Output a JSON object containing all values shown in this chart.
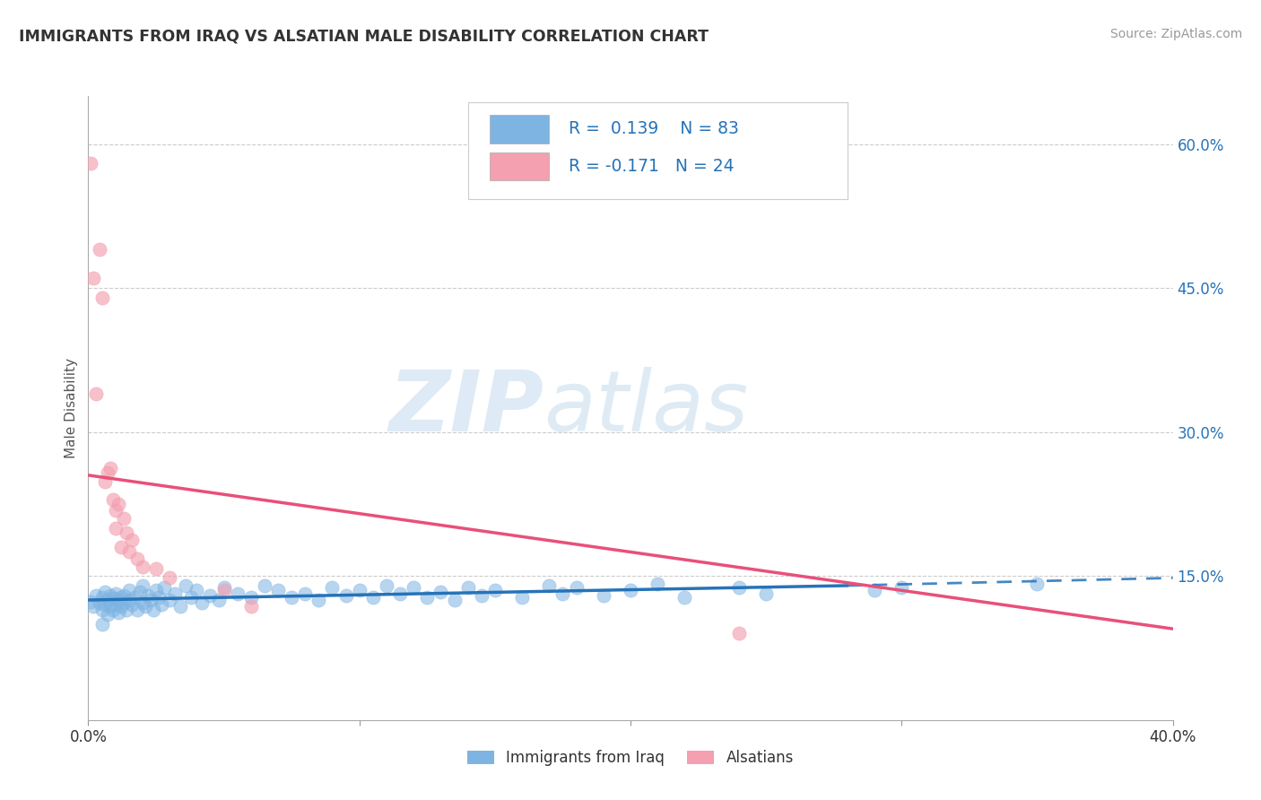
{
  "title": "IMMIGRANTS FROM IRAQ VS ALSATIAN MALE DISABILITY CORRELATION CHART",
  "source": "Source: ZipAtlas.com",
  "ylabel": "Male Disability",
  "xlim": [
    0.0,
    0.4
  ],
  "ylim": [
    0.0,
    0.65
  ],
  "legend_blue_label": "Immigrants from Iraq",
  "legend_pink_label": "Alsatians",
  "R_blue": 0.139,
  "N_blue": 83,
  "R_pink": -0.171,
  "N_pink": 24,
  "blue_color": "#7EB4E2",
  "pink_color": "#F4A0B0",
  "blue_line_color": "#2673B8",
  "pink_line_color": "#E8507A",
  "watermark_zip": "ZIP",
  "watermark_atlas": "atlas",
  "background_color": "#FFFFFF",
  "grid_color": "#CCCCCC",
  "blue_scatter": [
    [
      0.001,
      0.123
    ],
    [
      0.002,
      0.118
    ],
    [
      0.003,
      0.13
    ],
    [
      0.004,
      0.122
    ],
    [
      0.005,
      0.128
    ],
    [
      0.005,
      0.115
    ],
    [
      0.006,
      0.133
    ],
    [
      0.006,
      0.12
    ],
    [
      0.007,
      0.125
    ],
    [
      0.007,
      0.11
    ],
    [
      0.008,
      0.118
    ],
    [
      0.008,
      0.13
    ],
    [
      0.009,
      0.127
    ],
    [
      0.009,
      0.115
    ],
    [
      0.01,
      0.132
    ],
    [
      0.01,
      0.12
    ],
    [
      0.011,
      0.125
    ],
    [
      0.011,
      0.112
    ],
    [
      0.012,
      0.128
    ],
    [
      0.012,
      0.118
    ],
    [
      0.013,
      0.122
    ],
    [
      0.013,
      0.13
    ],
    [
      0.014,
      0.115
    ],
    [
      0.015,
      0.125
    ],
    [
      0.015,
      0.135
    ],
    [
      0.016,
      0.12
    ],
    [
      0.017,
      0.128
    ],
    [
      0.018,
      0.115
    ],
    [
      0.019,
      0.133
    ],
    [
      0.02,
      0.122
    ],
    [
      0.02,
      0.14
    ],
    [
      0.021,
      0.118
    ],
    [
      0.022,
      0.13
    ],
    [
      0.023,
      0.125
    ],
    [
      0.024,
      0.115
    ],
    [
      0.025,
      0.135
    ],
    [
      0.026,
      0.128
    ],
    [
      0.027,
      0.12
    ],
    [
      0.028,
      0.138
    ],
    [
      0.03,
      0.125
    ],
    [
      0.032,
      0.132
    ],
    [
      0.034,
      0.118
    ],
    [
      0.036,
      0.14
    ],
    [
      0.038,
      0.128
    ],
    [
      0.04,
      0.135
    ],
    [
      0.042,
      0.122
    ],
    [
      0.045,
      0.13
    ],
    [
      0.048,
      0.125
    ],
    [
      0.05,
      0.138
    ],
    [
      0.055,
      0.132
    ],
    [
      0.06,
      0.128
    ],
    [
      0.065,
      0.14
    ],
    [
      0.07,
      0.135
    ],
    [
      0.075,
      0.128
    ],
    [
      0.08,
      0.132
    ],
    [
      0.085,
      0.125
    ],
    [
      0.09,
      0.138
    ],
    [
      0.095,
      0.13
    ],
    [
      0.1,
      0.135
    ],
    [
      0.105,
      0.128
    ],
    [
      0.11,
      0.14
    ],
    [
      0.115,
      0.132
    ],
    [
      0.12,
      0.138
    ],
    [
      0.125,
      0.128
    ],
    [
      0.13,
      0.133
    ],
    [
      0.135,
      0.125
    ],
    [
      0.14,
      0.138
    ],
    [
      0.145,
      0.13
    ],
    [
      0.15,
      0.135
    ],
    [
      0.16,
      0.128
    ],
    [
      0.17,
      0.14
    ],
    [
      0.175,
      0.132
    ],
    [
      0.18,
      0.138
    ],
    [
      0.19,
      0.13
    ],
    [
      0.2,
      0.135
    ],
    [
      0.21,
      0.142
    ],
    [
      0.22,
      0.128
    ],
    [
      0.24,
      0.138
    ],
    [
      0.25,
      0.132
    ],
    [
      0.29,
      0.135
    ],
    [
      0.3,
      0.138
    ],
    [
      0.35,
      0.142
    ],
    [
      0.005,
      0.1
    ]
  ],
  "pink_scatter": [
    [
      0.001,
      0.58
    ],
    [
      0.002,
      0.46
    ],
    [
      0.004,
      0.49
    ],
    [
      0.003,
      0.34
    ],
    [
      0.005,
      0.44
    ],
    [
      0.006,
      0.248
    ],
    [
      0.007,
      0.258
    ],
    [
      0.008,
      0.262
    ],
    [
      0.009,
      0.23
    ],
    [
      0.01,
      0.2
    ],
    [
      0.01,
      0.218
    ],
    [
      0.011,
      0.225
    ],
    [
      0.012,
      0.18
    ],
    [
      0.013,
      0.21
    ],
    [
      0.014,
      0.195
    ],
    [
      0.015,
      0.175
    ],
    [
      0.016,
      0.188
    ],
    [
      0.018,
      0.168
    ],
    [
      0.02,
      0.16
    ],
    [
      0.025,
      0.158
    ],
    [
      0.03,
      0.148
    ],
    [
      0.05,
      0.135
    ],
    [
      0.06,
      0.118
    ],
    [
      0.24,
      0.09
    ]
  ],
  "blue_trendline_solid": [
    [
      0.0,
      0.125
    ],
    [
      0.28,
      0.14
    ]
  ],
  "blue_trendline_dashed": [
    [
      0.28,
      0.14
    ],
    [
      0.4,
      0.148
    ]
  ],
  "pink_trendline": [
    [
      0.0,
      0.255
    ],
    [
      0.4,
      0.095
    ]
  ]
}
